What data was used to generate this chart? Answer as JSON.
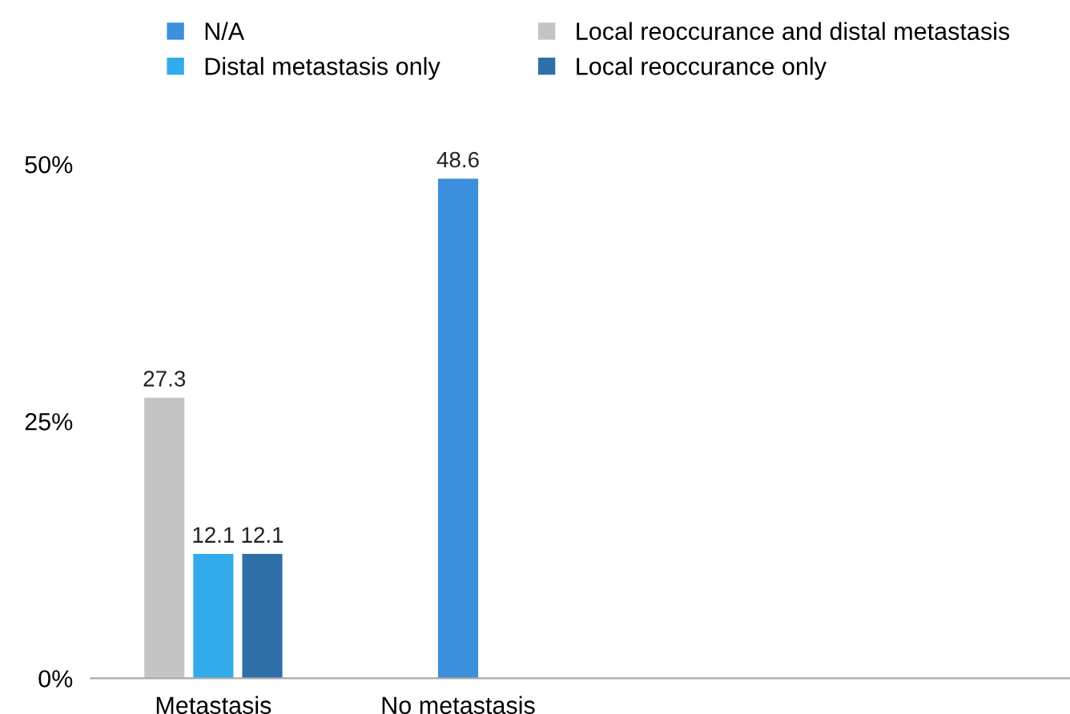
{
  "chart_data": {
    "type": "bar",
    "categories": [
      "Metastasis",
      "No metastasis",
      null,
      null
    ],
    "series": [
      {
        "name": "N/A",
        "color": "#3b8fdc",
        "values": [
          null,
          48.6,
          null,
          null
        ]
      },
      {
        "name": "Local reoccurance and distal metastasis",
        "color": "#c4c4c4",
        "values": [
          27.3,
          null,
          null,
          null
        ]
      },
      {
        "name": "Distal metastasis only",
        "color": "#33aaea",
        "values": [
          12.1,
          null,
          null,
          null
        ]
      },
      {
        "name": "Local reoccurance only",
        "color": "#2e6fa8",
        "values": [
          12.1,
          null,
          null,
          null
        ]
      }
    ],
    "ylim": [
      0,
      50
    ],
    "yticks": [
      {
        "value": 0,
        "label": "0%"
      },
      {
        "value": 25,
        "label": "25%"
      },
      {
        "value": 50,
        "label": "50%"
      }
    ],
    "data_labels": true,
    "grid": false,
    "legend": "top"
  }
}
